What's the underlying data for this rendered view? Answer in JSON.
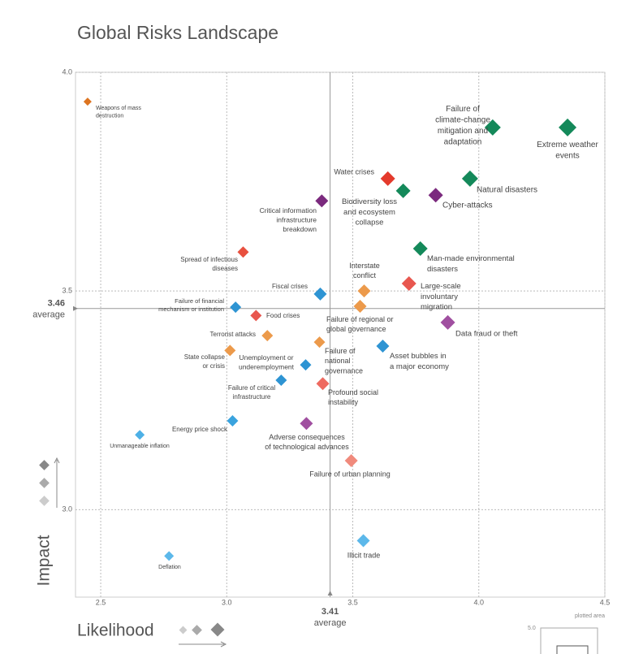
{
  "chart_data": {
    "type": "scatter",
    "title": "Global Risks Landscape",
    "x_label": "Likelihood",
    "y_label": "Impact",
    "xlim": [
      2.4,
      4.5
    ],
    "ylim": [
      2.8,
      4.0
    ],
    "xticks": [
      2.5,
      {
        "value": 3,
        "label": "3.0"
      },
      3.5,
      {
        "value": 4,
        "label": "4.0"
      },
      4.5
    ],
    "yticks": [
      {
        "value": 3,
        "label": "3.0"
      },
      3.5,
      {
        "value": 4,
        "label": "4.0"
      }
    ],
    "grid": true,
    "average": {
      "x": 3.41,
      "y": 3.46,
      "label": "average"
    },
    "inset": {
      "label": "plotted area",
      "tick": {
        "value": 5,
        "label": "5.0"
      }
    },
    "points": [
      {
        "name": "Weapons of mass destruction",
        "x": 2.448,
        "y": 3.933,
        "size": 5,
        "color": "#dd7420"
      },
      {
        "name": "Failure of climate-change mitigation and adaptation",
        "x": 4.055,
        "y": 3.874,
        "size": 10,
        "color": "#14895a"
      },
      {
        "name": "Extreme weather events",
        "x": 4.352,
        "y": 3.874,
        "size": 11,
        "color": "#14895a"
      },
      {
        "name": "Water crises",
        "x": 3.639,
        "y": 3.757,
        "size": 9,
        "color": "#e43a2c"
      },
      {
        "name": "Natural disasters",
        "x": 3.965,
        "y": 3.757,
        "size": 10,
        "color": "#14895a"
      },
      {
        "name": "Biodiversity loss and ecosystem collapse",
        "x": 3.7,
        "y": 3.729,
        "size": 9,
        "color": "#14895a"
      },
      {
        "name": "Cyber-attacks",
        "x": 3.829,
        "y": 3.719,
        "size": 9,
        "color": "#7b2a7e"
      },
      {
        "name": "Critical information infrastructure breakdown",
        "x": 3.377,
        "y": 3.706,
        "size": 8,
        "color": "#7b2a7e"
      },
      {
        "name": "Spread of infectious diseases",
        "x": 3.065,
        "y": 3.589,
        "size": 7,
        "color": "#e8503f"
      },
      {
        "name": "Man-made environmental disasters",
        "x": 3.768,
        "y": 3.597,
        "size": 9,
        "color": "#14895a"
      },
      {
        "name": "Interstate conflict",
        "x": 3.545,
        "y": 3.5,
        "size": 8,
        "color": "#ec9a4b"
      },
      {
        "name": "Large-scale involuntary migration",
        "x": 3.723,
        "y": 3.517,
        "size": 9,
        "color": "#e8574f"
      },
      {
        "name": "Fiscal crises",
        "x": 3.371,
        "y": 3.493,
        "size": 8,
        "color": "#2e94d3"
      },
      {
        "name": "Failure of regional or global governance",
        "x": 3.529,
        "y": 3.465,
        "size": 8,
        "color": "#ec9a4b"
      },
      {
        "name": "Failure of financial mechanism or institution",
        "x": 3.035,
        "y": 3.463,
        "size": 7,
        "color": "#2e94d3"
      },
      {
        "name": "Food crises",
        "x": 3.116,
        "y": 3.444,
        "size": 7,
        "color": "#e8574f"
      },
      {
        "name": "Data fraud or theft",
        "x": 3.877,
        "y": 3.428,
        "size": 9,
        "color": "#a04fa0"
      },
      {
        "name": "Terrorist attacks",
        "x": 3.161,
        "y": 3.398,
        "size": 7,
        "color": "#ec9a4b"
      },
      {
        "name": "Failure of national governance",
        "x": 3.368,
        "y": 3.383,
        "size": 7,
        "color": "#ec9a4b"
      },
      {
        "name": "Asset bubbles in a major economy",
        "x": 3.619,
        "y": 3.374,
        "size": 8,
        "color": "#2e94d3"
      },
      {
        "name": "State collapse or crisis",
        "x": 3.013,
        "y": 3.364,
        "size": 7,
        "color": "#ec9a4b"
      },
      {
        "name": "Unemployment or underemployment",
        "x": 3.313,
        "y": 3.331,
        "size": 7,
        "color": "#2e94d3"
      },
      {
        "name": "Failure of critical infrastructure",
        "x": 3.216,
        "y": 3.296,
        "size": 7,
        "color": "#2e94d3"
      },
      {
        "name": "Profound social instability",
        "x": 3.381,
        "y": 3.288,
        "size": 8,
        "color": "#ee6a60"
      },
      {
        "name": "Energy price shock",
        "x": 3.023,
        "y": 3.203,
        "size": 7,
        "color": "#3aa3de"
      },
      {
        "name": "Adverse consequences of technological advances",
        "x": 3.316,
        "y": 3.197,
        "size": 8,
        "color": "#a04fa0"
      },
      {
        "name": "Unmanageable inflation",
        "x": 2.655,
        "y": 3.171,
        "size": 6,
        "color": "#4db0e6"
      },
      {
        "name": "Failure of urban planning",
        "x": 3.494,
        "y": 3.112,
        "size": 8,
        "color": "#f08a7c"
      },
      {
        "name": "Illicit trade",
        "x": 3.542,
        "y": 2.929,
        "size": 8,
        "color": "#5cb8ea"
      },
      {
        "name": "Deflation",
        "x": 2.771,
        "y": 2.894,
        "size": 6,
        "color": "#5cb8ea"
      }
    ]
  }
}
